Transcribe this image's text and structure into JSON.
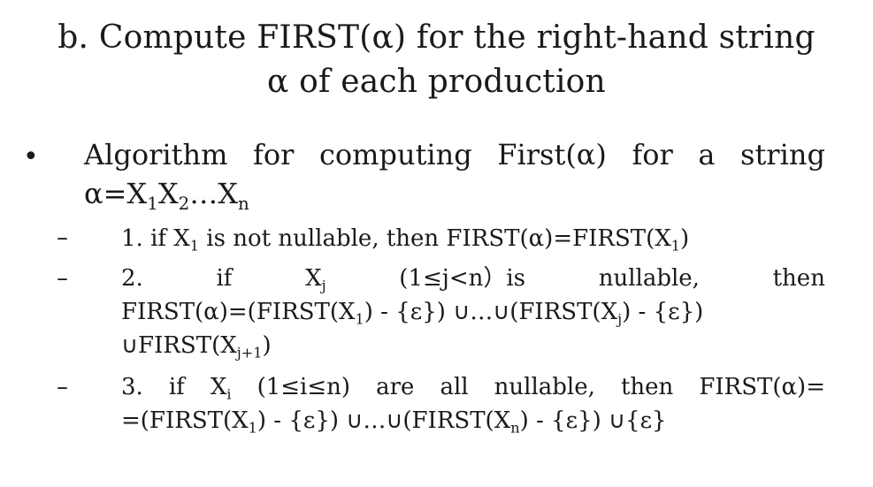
{
  "title": {
    "line1": "b. Compute FIRST(α) for the right-hand string",
    "line2": "α of  each production"
  },
  "bullet": "•",
  "algorithm": {
    "words": [
      "Algorithm",
      "for",
      "computing",
      "First(α)",
      "for",
      "a",
      "string"
    ],
    "string_prefix": "α=X",
    "sub1": "1",
    "x2": "X",
    "sub2": "2",
    "ellipsis": "…X",
    "subn": "n"
  },
  "dash": "–",
  "rule1": {
    "a": "1. if X",
    "sub1": "1",
    "b": " is not nullable, then FIRST(α)=FIRST(X",
    "sub2": "1",
    "c": ")"
  },
  "rule2": {
    "w1": "2.",
    "w2": "if",
    "w3": "X",
    "w3sub": "j",
    "w4": "(1≤j<n）is",
    "w5": "nullable,",
    "w6": "then",
    "l2a": "FIRST(α)=(FIRST(X",
    "l2sub1": "1",
    "l2b": ") - {ε}) ",
    "cup1": "∪",
    "l2c": "…",
    "cup2": "∪",
    "l2d": "(FIRST(X",
    "l2sub2": "j",
    "l2e": ") - {ε})",
    "cup3": "∪",
    "l3a": "FIRST(X",
    "l3sub": "j+1",
    "l3b": ")"
  },
  "rule3": {
    "words": [
      "3.",
      "if",
      "X",
      "(1≤i≤n)",
      "are",
      "all",
      "nullable,",
      "then",
      "FIRST(α)="
    ],
    "xsub": "i",
    "l2a": "=(FIRST(X",
    "l2sub1": "1",
    "l2b": ") - {ε}) ",
    "cup1": "∪",
    "l2c": "…",
    "cup2": "∪",
    "l2d": "(FIRST(X",
    "l2sub2": "n",
    "l2e": ") - {ε}) ",
    "cup3": "∪",
    "l2f": "{ε}"
  }
}
